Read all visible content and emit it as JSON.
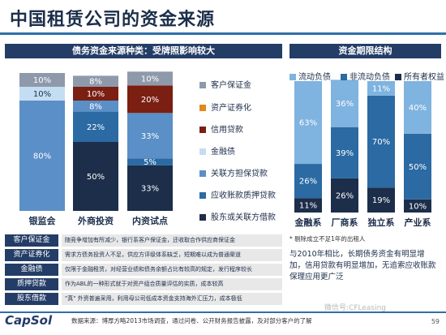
{
  "title": "中国租赁公司的资金来源",
  "left_header": "债务资金来源种类：受牌照影响较大",
  "right_header": "资金期限结构",
  "note": "* 剔除成立不足1年的出租人",
  "summary": "与2010年相比，长期债务资金有明显增加，信用贷款有明显增加，无追索应收账款保理应用更广泛",
  "table": [
    {
      "label": "客户保证金",
      "text": "随竞争增加有所减少，银行系客户保证金，还收取合作供应商保证金"
    },
    {
      "label": "资产证券化",
      "text": "需求方债务投资人不足，供应方评级体系缺乏，短期难以成为普通渠道"
    },
    {
      "label": "金融债",
      "text": "仅限于金融租赁，对经营业绩和债务余额占比有较高的规定，发行程序较长"
    },
    {
      "label": "质押贷款",
      "text": "作为ABL的一种形式就于对资产组合质量评估的实质，成本较高"
    },
    {
      "label": "股东借款",
      "text": "\"真\" 外资普遍采用，利用母公司低成本资金支持海外汇压力，成本极低"
    }
  ],
  "footer": {
    "logo": "CapSol",
    "source": "数据来源：博厚方略2013市场调查，通过问卷、公开财务报告披露，及对部分客户的了解",
    "page": "59",
    "watermark": "微信号:CFLeasing"
  },
  "colors": {
    "客户保证金": "#8e9aab",
    "资产证券化": "#e08a1e",
    "信用贷款": "#7a1f12",
    "金融债": "#c5ddf2",
    "关联方担保贷款": "#5b8fc7",
    "应收账款质押贷款": "#2b6aa3",
    "股东或关联方借款": "#1c2e4a",
    "流动负债": "#7fb3e0",
    "非流动负债": "#2b6aa3",
    "所有者权益": "#1c2e4a"
  },
  "chart_data": [
    {
      "type": "bar",
      "stacked": true,
      "categories": [
        "银监会",
        "外商投资",
        "内资试点"
      ],
      "series": [
        {
          "name": "股东或关联方借款",
          "values": [
            0,
            50,
            33
          ]
        },
        {
          "name": "应收账款质押贷款",
          "values": [
            0,
            0,
            5
          ]
        },
        {
          "name": "关联方担保贷款",
          "values": [
            0,
            22,
            0
          ]
        },
        {
          "name": "金融债",
          "values": [
            80,
            0,
            33
          ]
        },
        {
          "name": "信用贷款",
          "values": [
            0,
            8,
            0
          ]
        },
        {
          "name": "资产证券化",
          "values": [
            0,
            0,
            0
          ]
        },
        {
          "name": "客户保证金",
          "values": [
            10,
            0,
            0
          ]
        }
      ],
      "segment_labels": [
        [
          "80%",
          "10%",
          "10%"
        ],
        [
          "50%",
          "22%",
          "8%",
          "10%",
          "8%"
        ],
        [
          "33%",
          "5%",
          "33%",
          "20%",
          "10%"
        ]
      ],
      "ylim": [
        0,
        100
      ]
    },
    {
      "type": "bar",
      "stacked": true,
      "categories": [
        "金融系",
        "厂商系",
        "独立系",
        "产业系"
      ],
      "series": [
        {
          "name": "流动负债",
          "values": [
            63,
            36,
            11,
            40
          ]
        },
        {
          "name": "非流动负债",
          "values": [
            26,
            39,
            70,
            50
          ]
        },
        {
          "name": "所有者权益",
          "values": [
            11,
            26,
            19,
            10
          ]
        }
      ],
      "ylim": [
        0,
        100
      ]
    }
  ]
}
